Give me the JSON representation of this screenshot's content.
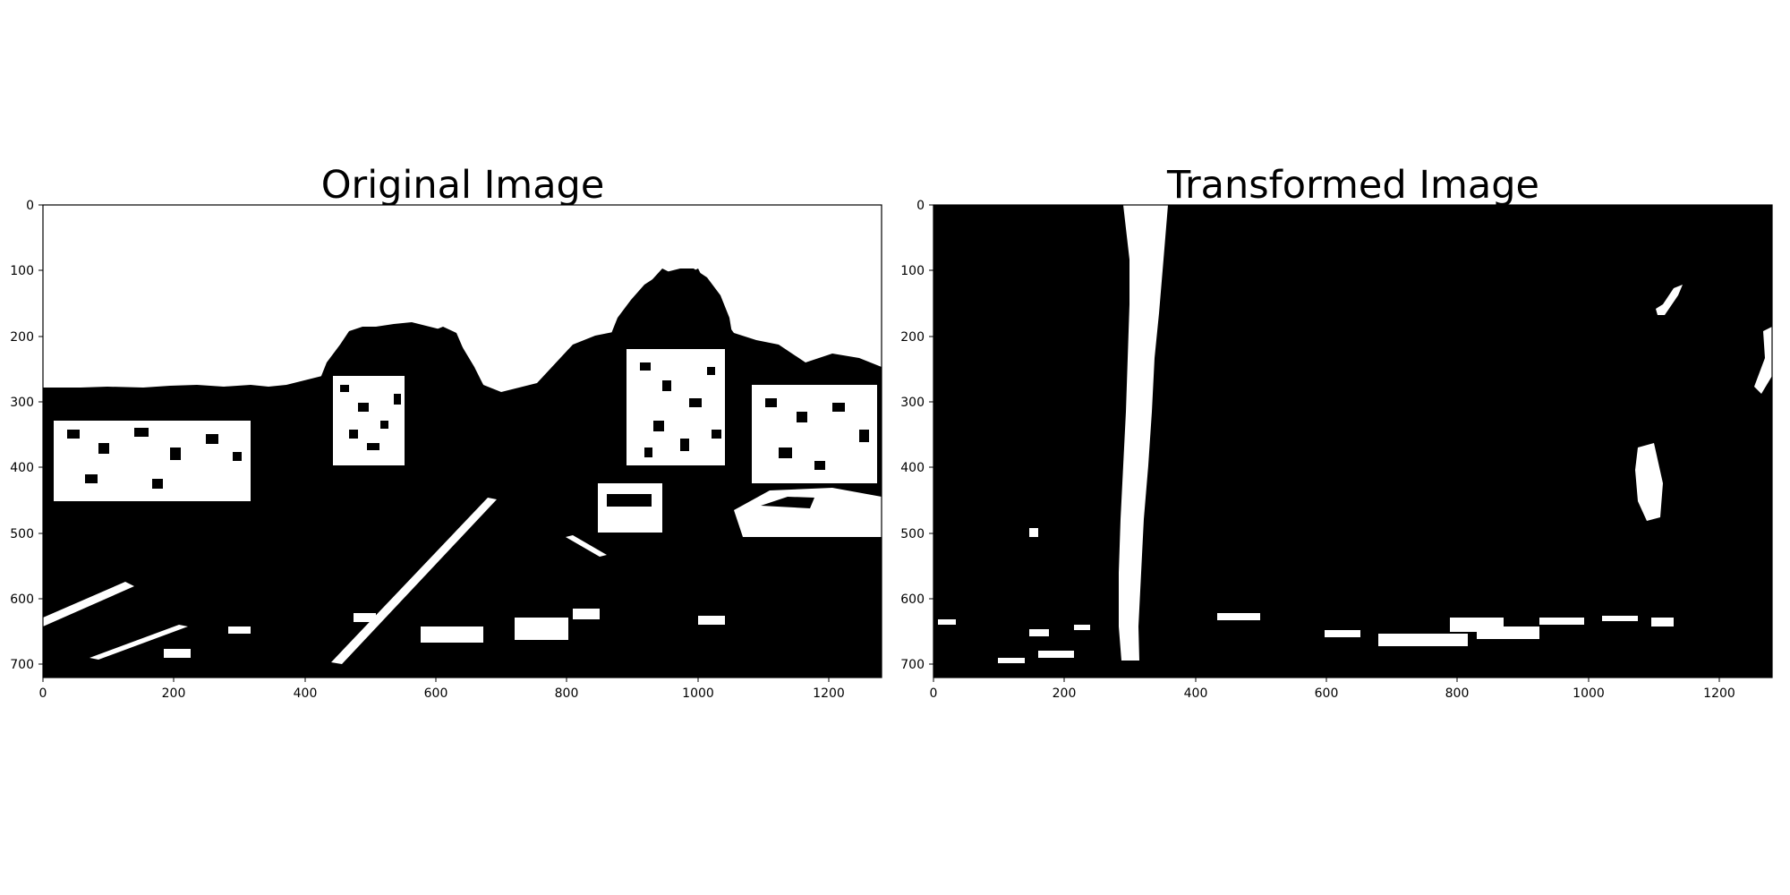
{
  "figure": {
    "panels": [
      {
        "id": "left",
        "title": "Original Image",
        "xticks": [
          0,
          200,
          400,
          600,
          800,
          1000,
          1200
        ],
        "yticks": [
          0,
          100,
          200,
          300,
          400,
          500,
          600,
          700
        ],
        "xlim": [
          0,
          1280
        ],
        "ylim": [
          720,
          0
        ],
        "content": "binary-thresholded-road-scene"
      },
      {
        "id": "right",
        "title": "Transformed Image",
        "xticks": [
          0,
          200,
          400,
          600,
          800,
          1000,
          1200
        ],
        "yticks": [
          0,
          100,
          200,
          300,
          400,
          500,
          600,
          700
        ],
        "xlim": [
          0,
          1280
        ],
        "ylim": [
          720,
          0
        ],
        "content": "birds-eye-warped-lane-lines"
      }
    ],
    "colors": {
      "foreground": "#ffffff",
      "background": "#000000"
    }
  }
}
